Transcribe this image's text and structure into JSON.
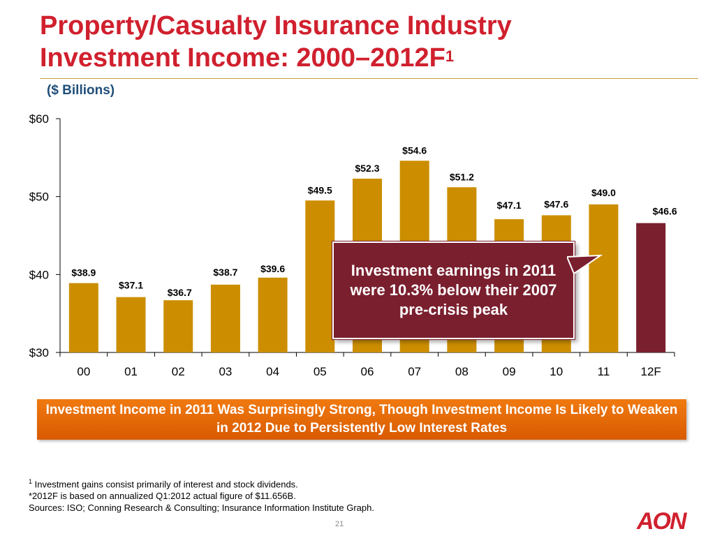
{
  "header": {
    "title_line1": "Property/Casualty Insurance Industry",
    "title_line2": "Investment Income: 2000–2012F",
    "title_sup": "1",
    "units": "($ Billions)"
  },
  "chart_data": {
    "type": "bar",
    "categories": [
      "00",
      "01",
      "02",
      "03",
      "04",
      "05",
      "06",
      "07",
      "08",
      "09",
      "10",
      "11",
      "12F"
    ],
    "values": [
      38.9,
      37.1,
      36.7,
      38.7,
      39.6,
      49.5,
      52.3,
      54.6,
      51.2,
      47.1,
      47.6,
      49.0,
      46.6
    ],
    "value_labels": [
      "$38.9",
      "$37.1",
      "$36.7",
      "$38.7",
      "$39.6",
      "$49.5",
      "$52.3",
      "$54.6",
      "$51.2",
      "$47.1",
      "$47.6",
      "$49.0",
      "$46.6"
    ],
    "y_ticks": [
      30,
      40,
      50,
      60
    ],
    "y_tick_labels": [
      "$30",
      "$40",
      "$50",
      "$60"
    ],
    "ylim": [
      30,
      60
    ],
    "bar_color": "#cc8e00",
    "highlight_color": "#7a1f2e",
    "highlight_category": "12F",
    "grid": false
  },
  "callout": {
    "text": "Investment earnings in 2011 were 10.3% below their 2007 pre-crisis peak",
    "color": "#7a1f2e"
  },
  "banner": {
    "text": "Investment Income in 2011 Was Surprisingly Strong, Though Investment Income Is Likely to Weaken in 2012 Due to Persistently Low Interest Rates",
    "color": "#e86a00"
  },
  "footnotes": {
    "note1_marker": "1",
    "note1": " Investment gains consist primarily of interest and stock dividends.",
    "note2": "*2012F is based on annualized Q1:2012 actual figure of $11.656B.",
    "sources": "Sources: ISO; Conning Research & Consulting; Insurance Information Institute Graph."
  },
  "page_number": "21",
  "logo_text": "AON"
}
